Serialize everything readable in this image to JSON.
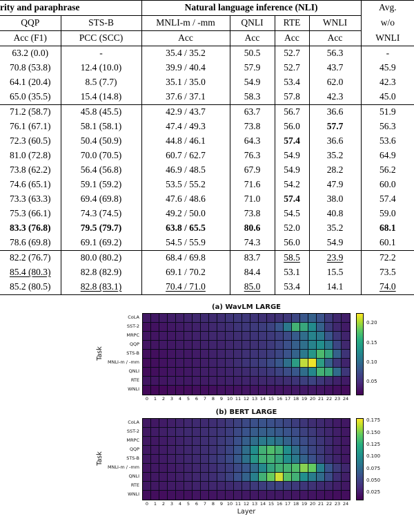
{
  "table": {
    "group_headers": [
      {
        "label": "rity and paraphrase",
        "span": 2
      },
      {
        "label": "Natural language inference (NLI)",
        "span": 4
      },
      {
        "label": "Avg.",
        "span": 1
      }
    ],
    "col_headers": [
      "QQP",
      "STS-B",
      "MNLI-m / -mm",
      "QNLI",
      "RTE",
      "WNLI",
      "w/o"
    ],
    "sub_headers": [
      "Acc (F1)",
      "PCC (SCC)",
      "Acc",
      "Acc",
      "Acc",
      "Acc",
      "WNLI"
    ],
    "groups": [
      {
        "rows": [
          {
            "cells": [
              "63.2 (0.0)",
              "-",
              "35.4 / 35.2",
              "50.5",
              "52.7",
              "56.3",
              "-"
            ],
            "bold": [],
            "underline": []
          },
          {
            "cells": [
              "70.8 (53.8)",
              "12.4 (10.0)",
              "39.9 / 40.4",
              "57.9",
              "52.7",
              "43.7",
              "45.9"
            ],
            "bold": [],
            "underline": []
          },
          {
            "cells": [
              "64.1 (20.4)",
              "8.5 (7.7)",
              "35.1 / 35.0",
              "54.9",
              "53.4",
              "62.0",
              "42.3"
            ],
            "bold": [],
            "underline": []
          },
          {
            "cells": [
              "65.0 (35.5)",
              "15.4 (14.8)",
              "37.6 / 37.1",
              "58.3",
              "57.8",
              "42.3",
              "45.0"
            ],
            "bold": [],
            "underline": []
          }
        ]
      },
      {
        "rows": [
          {
            "cells": [
              "71.2 (58.7)",
              "45.8 (45.5)",
              "42.9 / 43.7",
              "63.7",
              "56.7",
              "36.6",
              "51.9"
            ],
            "bold": [],
            "underline": []
          },
          {
            "cells": [
              "76.1 (67.1)",
              "58.1 (58.1)",
              "47.4 / 49.3",
              "73.8",
              "56.0",
              "57.7",
              "56.3"
            ],
            "bold": [
              5
            ],
            "underline": []
          },
          {
            "cells": [
              "72.3 (60.5)",
              "50.4 (50.9)",
              "44.8 / 46.1",
              "64.3",
              "57.4",
              "36.6",
              "53.6"
            ],
            "bold": [
              4
            ],
            "underline": []
          },
          {
            "cells": [
              "81.0 (72.8)",
              "70.0 (70.5)",
              "60.7 / 62.7",
              "76.3",
              "54.9",
              "35.2",
              "64.9"
            ],
            "bold": [],
            "underline": []
          },
          {
            "cells": [
              "73.8 (62.2)",
              "56.4 (56.8)",
              "46.9 / 48.5",
              "67.9",
              "54.9",
              "28.2",
              "56.2"
            ],
            "bold": [],
            "underline": []
          },
          {
            "cells": [
              "74.6 (65.1)",
              "59.1 (59.2)",
              "53.5 / 55.2",
              "71.6",
              "54.2",
              "47.9",
              "60.0"
            ],
            "bold": [],
            "underline": []
          },
          {
            "cells": [
              "73.3 (63.3)",
              "69.4 (69.8)",
              "47.6 / 48.6",
              "71.0",
              "57.4",
              "38.0",
              "57.4"
            ],
            "bold": [
              4
            ],
            "underline": []
          },
          {
            "cells": [
              "75.3 (66.1)",
              "74.3 (74.5)",
              "49.2 / 50.0",
              "73.8",
              "54.5",
              "40.8",
              "59.0"
            ],
            "bold": [],
            "underline": []
          },
          {
            "cells": [
              "83.3 (76.8)",
              "79.5 (79.7)",
              "63.8 / 65.5",
              "80.6",
              "52.0",
              "35.2",
              "68.1"
            ],
            "bold": [
              0,
              1,
              2,
              3,
              6
            ],
            "underline": []
          },
          {
            "cells": [
              "78.6 (69.8)",
              "69.1 (69.2)",
              "54.5 / 55.9",
              "74.3",
              "56.0",
              "54.9",
              "60.1"
            ],
            "bold": [],
            "underline": []
          }
        ]
      },
      {
        "rows": [
          {
            "cells": [
              "82.2 (76.7)",
              "80.0 (80.2)",
              "68.4 / 69.8",
              "83.7",
              "58.5",
              "23.9",
              "72.2"
            ],
            "bold": [],
            "underline": [
              4,
              5
            ]
          },
          {
            "cells": [
              "85.4 (80.3)",
              "82.8 (82.9)",
              "69.1 / 70.2",
              "84.4",
              "53.1",
              "15.5",
              "73.5"
            ],
            "bold": [],
            "underline": [
              0
            ]
          },
          {
            "cells": [
              "85.2 (80.5)",
              "82.8 (83.1)",
              "70.4 / 71.0",
              "85.0",
              "53.4",
              "14.1",
              "74.0"
            ],
            "bold": [],
            "underline": [
              1,
              2,
              3,
              6
            ]
          }
        ]
      }
    ]
  },
  "chart_data": [
    {
      "type": "heatmap",
      "title": "(a) WavLM LARGE",
      "ylabel": "Task",
      "xlabel": "",
      "x": [
        0,
        1,
        2,
        3,
        4,
        5,
        6,
        7,
        8,
        9,
        10,
        11,
        12,
        13,
        14,
        15,
        16,
        17,
        18,
        19,
        20,
        21,
        22,
        23,
        24
      ],
      "tasks": [
        "CoLA",
        "SST-2",
        "MRPC",
        "QQP",
        "STS-B",
        "MNLI-m / -mm",
        "QNLI",
        "RTE",
        "WNLI"
      ],
      "vmin": 0.015,
      "vmax": 0.225,
      "colorbar_ticks": [
        "0.20",
        "0.15",
        "0.10",
        "0.05"
      ],
      "colorbar_tick_values": [
        0.2,
        0.15,
        0.1,
        0.05
      ],
      "colormap": "viridis",
      "values": [
        [
          0.03,
          0.03,
          0.032,
          0.034,
          0.035,
          0.038,
          0.04,
          0.042,
          0.042,
          0.044,
          0.048,
          0.05,
          0.05,
          0.048,
          0.046,
          0.044,
          0.046,
          0.05,
          0.06,
          0.072,
          0.08,
          0.068,
          0.052,
          0.04,
          0.034
        ],
        [
          0.024,
          0.026,
          0.028,
          0.03,
          0.032,
          0.034,
          0.036,
          0.038,
          0.04,
          0.042,
          0.044,
          0.048,
          0.05,
          0.052,
          0.054,
          0.058,
          0.07,
          0.1,
          0.15,
          0.14,
          0.115,
          0.08,
          0.052,
          0.04,
          0.032
        ],
        [
          0.028,
          0.028,
          0.03,
          0.03,
          0.032,
          0.034,
          0.036,
          0.038,
          0.04,
          0.04,
          0.042,
          0.044,
          0.046,
          0.048,
          0.05,
          0.052,
          0.056,
          0.062,
          0.075,
          0.09,
          0.108,
          0.1,
          0.07,
          0.05,
          0.038
        ],
        [
          0.028,
          0.028,
          0.03,
          0.03,
          0.032,
          0.032,
          0.034,
          0.036,
          0.038,
          0.038,
          0.04,
          0.042,
          0.044,
          0.046,
          0.048,
          0.052,
          0.058,
          0.066,
          0.078,
          0.092,
          0.108,
          0.118,
          0.098,
          0.06,
          0.04
        ],
        [
          0.024,
          0.024,
          0.026,
          0.028,
          0.03,
          0.03,
          0.032,
          0.034,
          0.036,
          0.038,
          0.04,
          0.042,
          0.046,
          0.048,
          0.05,
          0.054,
          0.06,
          0.068,
          0.082,
          0.1,
          0.125,
          0.158,
          0.138,
          0.08,
          0.048
        ],
        [
          0.022,
          0.024,
          0.026,
          0.028,
          0.03,
          0.03,
          0.032,
          0.034,
          0.036,
          0.038,
          0.04,
          0.044,
          0.048,
          0.052,
          0.056,
          0.062,
          0.072,
          0.092,
          0.13,
          0.205,
          0.22,
          0.13,
          0.078,
          0.05,
          0.038
        ],
        [
          0.022,
          0.024,
          0.026,
          0.028,
          0.028,
          0.03,
          0.032,
          0.034,
          0.034,
          0.036,
          0.038,
          0.04,
          0.042,
          0.046,
          0.048,
          0.052,
          0.058,
          0.064,
          0.072,
          0.09,
          0.112,
          0.15,
          0.142,
          0.088,
          0.05
        ],
        [
          0.028,
          0.028,
          0.028,
          0.03,
          0.03,
          0.03,
          0.032,
          0.032,
          0.034,
          0.034,
          0.036,
          0.036,
          0.038,
          0.038,
          0.04,
          0.04,
          0.042,
          0.044,
          0.048,
          0.055,
          0.058,
          0.05,
          0.042,
          0.036,
          0.032
        ],
        [
          0.02,
          0.02,
          0.02,
          0.022,
          0.022,
          0.022,
          0.024,
          0.024,
          0.024,
          0.026,
          0.026,
          0.026,
          0.028,
          0.028,
          0.028,
          0.028,
          0.028,
          0.028,
          0.03,
          0.03,
          0.03,
          0.028,
          0.026,
          0.024,
          0.022
        ]
      ]
    },
    {
      "type": "heatmap",
      "title": "(b) BERT LARGE",
      "ylabel": "Task",
      "xlabel": "Layer",
      "x": [
        0,
        1,
        2,
        3,
        4,
        5,
        6,
        7,
        8,
        9,
        10,
        11,
        12,
        13,
        14,
        15,
        16,
        17,
        18,
        19,
        20,
        21,
        22,
        23,
        24
      ],
      "tasks": [
        "CoLA",
        "SST-2",
        "MRPC",
        "QQP",
        "STS-B",
        "MNLI-m / -mm",
        "QNLI",
        "RTE",
        "WNLI"
      ],
      "vmin": 0.008,
      "vmax": 0.18,
      "colorbar_ticks": [
        "0.175",
        "0.150",
        "0.125",
        "0.100",
        "0.075",
        "0.050",
        "0.025"
      ],
      "colorbar_tick_values": [
        0.175,
        0.15,
        0.125,
        0.1,
        0.075,
        0.05,
        0.025
      ],
      "colormap": "viridis",
      "values": [
        [
          0.02,
          0.02,
          0.022,
          0.024,
          0.026,
          0.028,
          0.03,
          0.03,
          0.032,
          0.034,
          0.038,
          0.042,
          0.046,
          0.05,
          0.052,
          0.05,
          0.048,
          0.044,
          0.04,
          0.036,
          0.032,
          0.03,
          0.026,
          0.022,
          0.02
        ],
        [
          0.02,
          0.022,
          0.024,
          0.026,
          0.028,
          0.03,
          0.03,
          0.032,
          0.034,
          0.036,
          0.04,
          0.046,
          0.052,
          0.058,
          0.06,
          0.06,
          0.056,
          0.052,
          0.048,
          0.042,
          0.038,
          0.032,
          0.028,
          0.024,
          0.02
        ],
        [
          0.02,
          0.02,
          0.022,
          0.024,
          0.026,
          0.028,
          0.03,
          0.032,
          0.034,
          0.038,
          0.042,
          0.05,
          0.06,
          0.07,
          0.078,
          0.078,
          0.072,
          0.062,
          0.054,
          0.048,
          0.042,
          0.036,
          0.03,
          0.024,
          0.02
        ],
        [
          0.02,
          0.02,
          0.022,
          0.024,
          0.026,
          0.028,
          0.03,
          0.032,
          0.034,
          0.038,
          0.044,
          0.054,
          0.07,
          0.092,
          0.118,
          0.128,
          0.118,
          0.092,
          0.07,
          0.054,
          0.044,
          0.038,
          0.03,
          0.024,
          0.02
        ],
        [
          0.02,
          0.02,
          0.022,
          0.024,
          0.026,
          0.028,
          0.03,
          0.032,
          0.036,
          0.04,
          0.046,
          0.056,
          0.072,
          0.098,
          0.118,
          0.12,
          0.11,
          0.092,
          0.078,
          0.062,
          0.05,
          0.04,
          0.032,
          0.026,
          0.02
        ],
        [
          0.018,
          0.02,
          0.02,
          0.022,
          0.024,
          0.026,
          0.028,
          0.03,
          0.032,
          0.036,
          0.04,
          0.046,
          0.054,
          0.068,
          0.088,
          0.108,
          0.118,
          0.12,
          0.128,
          0.148,
          0.138,
          0.082,
          0.052,
          0.038,
          0.028
        ],
        [
          0.018,
          0.02,
          0.02,
          0.022,
          0.024,
          0.026,
          0.028,
          0.03,
          0.032,
          0.036,
          0.042,
          0.05,
          0.062,
          0.082,
          0.118,
          0.14,
          0.168,
          0.132,
          0.118,
          0.092,
          0.08,
          0.068,
          0.048,
          0.032,
          0.024
        ],
        [
          0.02,
          0.02,
          0.02,
          0.022,
          0.022,
          0.024,
          0.026,
          0.026,
          0.028,
          0.028,
          0.03,
          0.032,
          0.034,
          0.038,
          0.04,
          0.042,
          0.042,
          0.04,
          0.038,
          0.036,
          0.034,
          0.03,
          0.028,
          0.024,
          0.02
        ],
        [
          0.015,
          0.015,
          0.015,
          0.016,
          0.016,
          0.016,
          0.018,
          0.018,
          0.018,
          0.019,
          0.019,
          0.02,
          0.02,
          0.02,
          0.02,
          0.02,
          0.02,
          0.02,
          0.019,
          0.019,
          0.018,
          0.017,
          0.016,
          0.015,
          0.015
        ]
      ]
    }
  ]
}
